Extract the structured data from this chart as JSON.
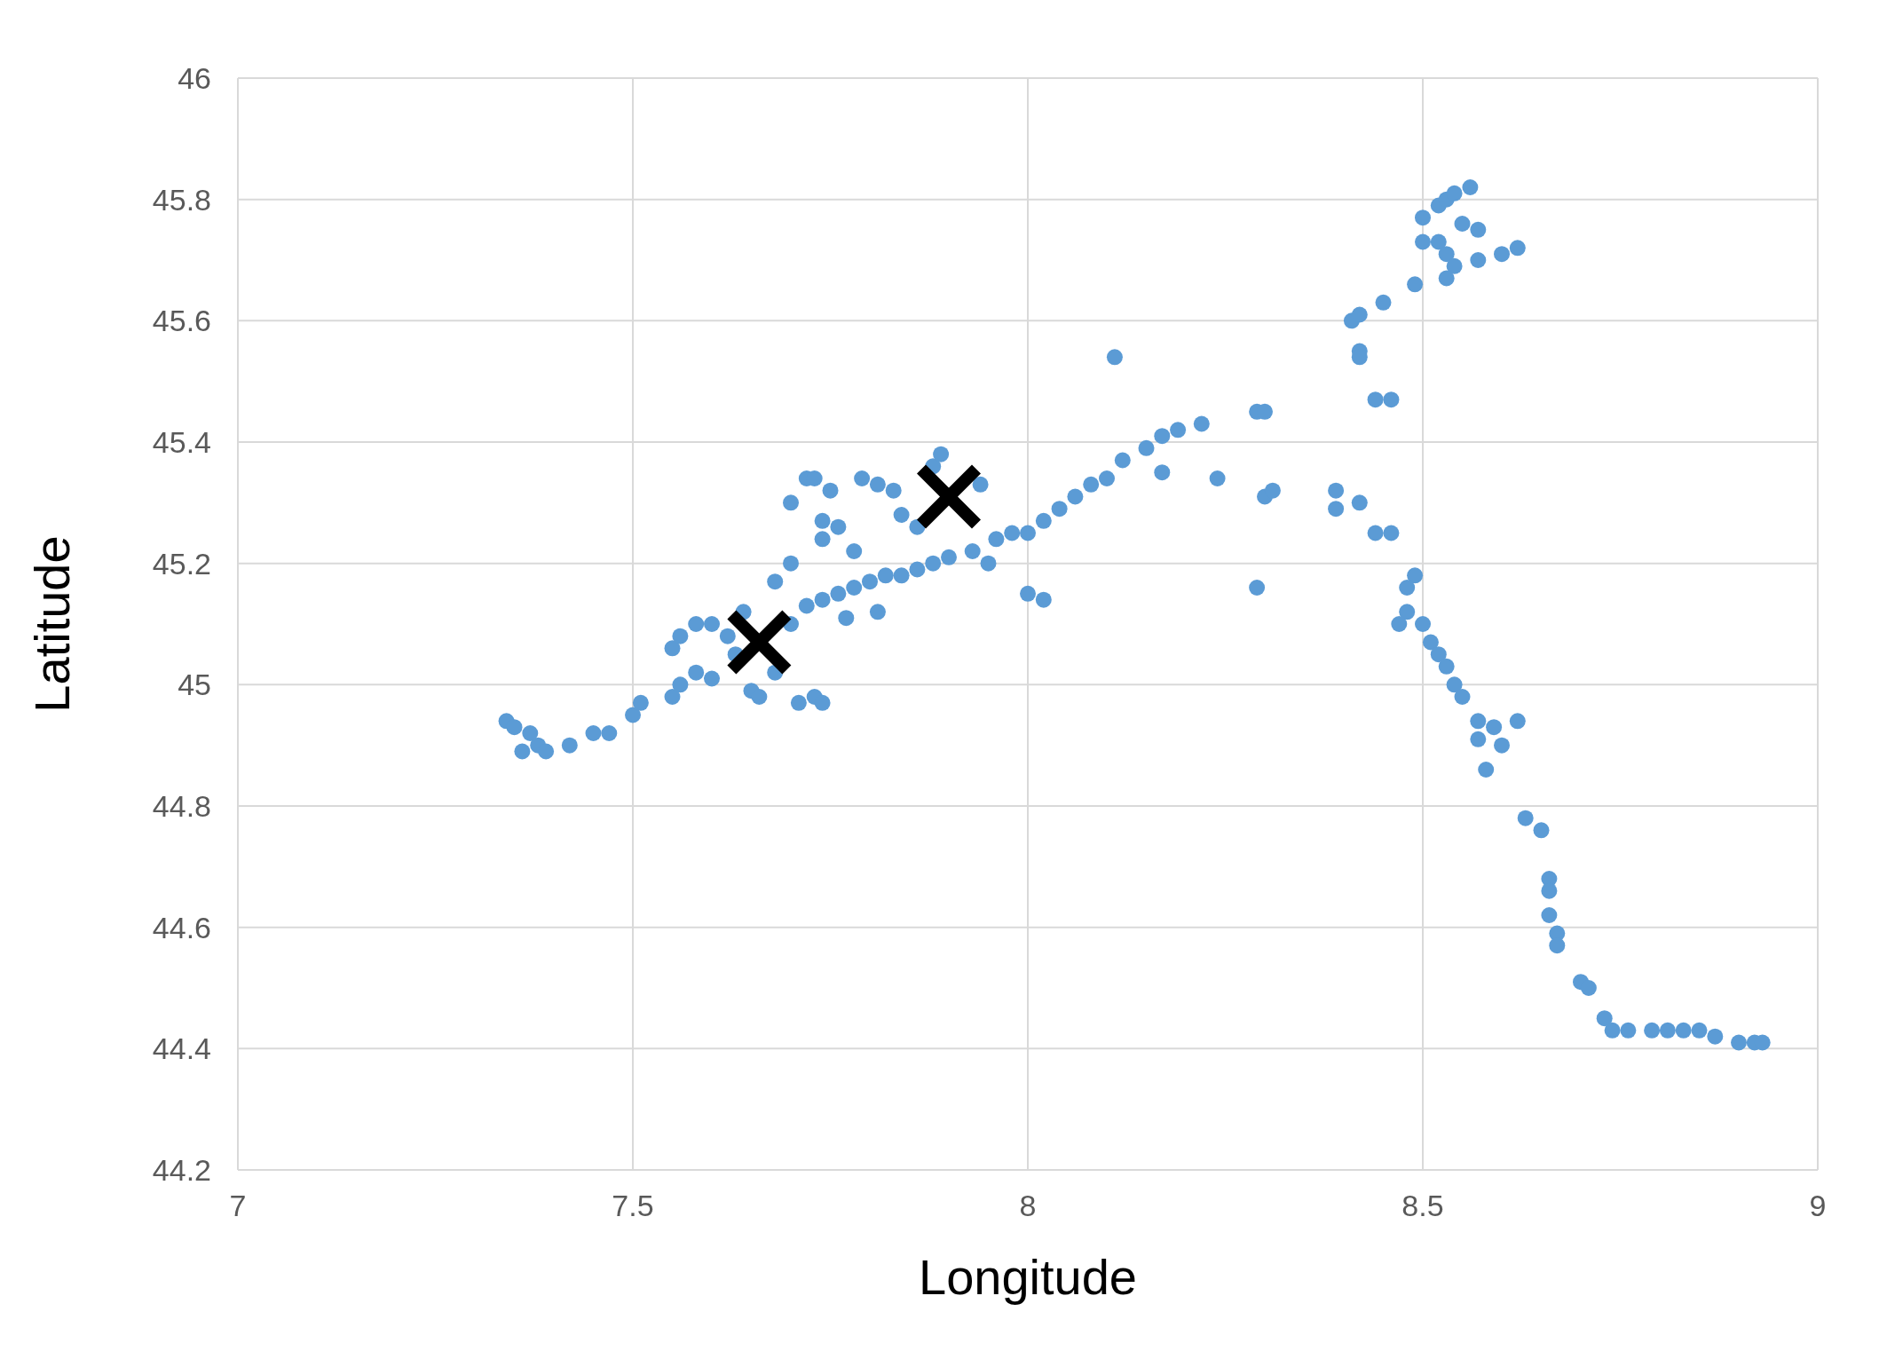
{
  "chart_data": {
    "type": "scatter",
    "xlabel": "Longitude",
    "ylabel": "Latitude",
    "xlim": [
      7,
      9
    ],
    "xticks": [
      7,
      7.5,
      8,
      8.5,
      9
    ],
    "ylim": [
      44.2,
      46
    ],
    "yticks": [
      44.2,
      44.4,
      44.6,
      44.8,
      45,
      45.2,
      45.4,
      45.6,
      45.8,
      46
    ],
    "grid": true,
    "legend": false,
    "marker": "circle",
    "series": [
      {
        "color": "#5b9bd5",
        "x": [
          7.34,
          7.35,
          7.37,
          7.38,
          7.36,
          7.39,
          7.42,
          7.45,
          7.47,
          7.5,
          7.51,
          7.55,
          7.56,
          7.58,
          7.6,
          7.55,
          7.56,
          7.58,
          7.6,
          7.62,
          7.63,
          7.64,
          7.65,
          7.66,
          7.68,
          7.7,
          7.7,
          7.72,
          7.73,
          7.75,
          7.74,
          7.74,
          7.76,
          7.71,
          7.73,
          7.74,
          7.68,
          7.7,
          7.72,
          7.74,
          7.76,
          7.78,
          7.8,
          7.82,
          7.84,
          7.86,
          7.88,
          7.9,
          7.78,
          7.77,
          7.81,
          7.79,
          7.81,
          7.83,
          7.84,
          7.86,
          7.88,
          7.89,
          7.94,
          7.93,
          7.95,
          7.96,
          7.98,
          8,
          8.02,
          8.04,
          8.06,
          8.08,
          8.1,
          8.12,
          8.15,
          8.17,
          8.19,
          8.22,
          8.11,
          8,
          8.02,
          8.17,
          8.24,
          8.29,
          8.3,
          8.3,
          8.31,
          8.29,
          8.39,
          8.39,
          8.42,
          8.44,
          8.46,
          8.41,
          8.42,
          8.42,
          8.42,
          8.44,
          8.46,
          8.45,
          8.49,
          8.5,
          8.5,
          8.52,
          8.53,
          8.54,
          8.56,
          8.55,
          8.57,
          8.52,
          8.53,
          8.54,
          8.53,
          8.57,
          8.6,
          8.62,
          8.49,
          8.48,
          8.48,
          8.47,
          8.5,
          8.51,
          8.52,
          8.53,
          8.54,
          8.55,
          8.57,
          8.57,
          8.59,
          8.6,
          8.62,
          8.58,
          8.63,
          8.65,
          8.66,
          8.66,
          8.66,
          8.67,
          8.67,
          8.7,
          8.71,
          8.73,
          8.74,
          8.76,
          8.79,
          8.81,
          8.83,
          8.85,
          8.87,
          8.9,
          8.92,
          8.93
        ],
        "values": [
          44.94,
          44.93,
          44.92,
          44.9,
          44.89,
          44.89,
          44.9,
          44.92,
          44.92,
          44.95,
          44.97,
          44.98,
          45,
          45.02,
          45.01,
          45.06,
          45.08,
          45.1,
          45.1,
          45.08,
          45.05,
          45.12,
          44.99,
          44.98,
          45.17,
          45.2,
          45.3,
          45.34,
          45.34,
          45.32,
          45.27,
          45.24,
          45.26,
          44.97,
          44.98,
          44.97,
          45.02,
          45.1,
          45.13,
          45.14,
          45.15,
          45.16,
          45.17,
          45.18,
          45.18,
          45.19,
          45.2,
          45.21,
          45.22,
          45.11,
          45.12,
          45.34,
          45.33,
          45.32,
          45.28,
          45.26,
          45.36,
          45.38,
          45.33,
          45.22,
          45.2,
          45.24,
          45.25,
          45.25,
          45.27,
          45.29,
          45.31,
          45.33,
          45.34,
          45.37,
          45.39,
          45.41,
          45.42,
          45.43,
          45.54,
          45.15,
          45.14,
          45.35,
          45.34,
          45.45,
          45.45,
          45.31,
          45.32,
          45.16,
          45.32,
          45.29,
          45.3,
          45.25,
          45.25,
          45.6,
          45.61,
          45.55,
          45.54,
          45.47,
          45.47,
          45.63,
          45.66,
          45.73,
          45.77,
          45.79,
          45.8,
          45.81,
          45.82,
          45.76,
          45.75,
          45.73,
          45.71,
          45.69,
          45.67,
          45.7,
          45.71,
          45.72,
          45.18,
          45.16,
          45.12,
          45.1,
          45.1,
          45.07,
          45.05,
          45.03,
          45,
          44.98,
          44.94,
          44.91,
          44.93,
          44.9,
          44.94,
          44.86,
          44.78,
          44.76,
          44.68,
          44.66,
          44.62,
          44.59,
          44.57,
          44.51,
          44.5,
          44.45,
          44.43,
          44.43,
          44.43,
          44.43,
          44.43,
          44.43,
          44.42,
          44.41,
          44.41,
          44.41
        ]
      },
      {
        "color": "#000000",
        "marker": "cross",
        "x": [
          7.66,
          7.9
        ],
        "values": [
          45.07,
          45.31
        ]
      }
    ]
  }
}
